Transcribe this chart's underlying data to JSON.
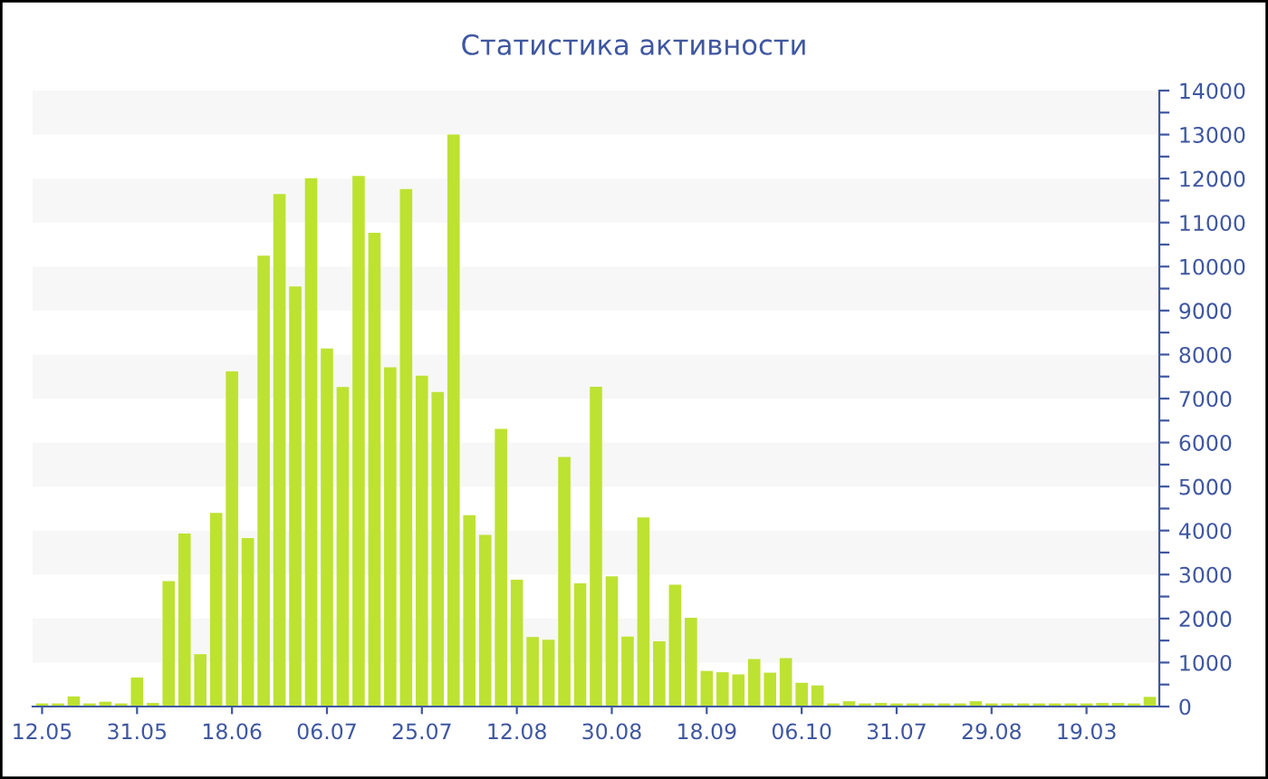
{
  "chart_data": {
    "type": "bar",
    "title": "Статистика активности",
    "categories": [
      "12.05",
      null,
      null,
      null,
      null,
      null,
      "31.05",
      null,
      null,
      null,
      null,
      null,
      "18.06",
      null,
      null,
      null,
      null,
      null,
      "06.07",
      null,
      null,
      null,
      null,
      null,
      "25.07",
      null,
      null,
      null,
      null,
      null,
      "12.08",
      null,
      null,
      null,
      null,
      null,
      "30.08",
      null,
      null,
      null,
      null,
      null,
      "18.09",
      null,
      null,
      null,
      null,
      null,
      "06.10",
      null,
      null,
      null,
      null,
      null,
      "31.07",
      null,
      null,
      null,
      null,
      null,
      "29.08",
      null,
      null,
      null,
      null,
      null,
      "19.03",
      null,
      null,
      null,
      null
    ],
    "values": [
      70,
      70,
      230,
      70,
      110,
      70,
      660,
      80,
      2850,
      3930,
      1190,
      4400,
      7620,
      3830,
      10250,
      11650,
      9550,
      12010,
      8140,
      7260,
      12060,
      10770,
      7710,
      11760,
      7520,
      7150,
      13000,
      4350,
      3900,
      6310,
      2880,
      1580,
      1520,
      5670,
      2800,
      7270,
      2960,
      1590,
      4300,
      1480,
      2770,
      2020,
      810,
      780,
      730,
      1080,
      770,
      1100,
      540,
      480,
      70,
      120,
      70,
      80,
      70,
      70,
      70,
      70,
      70,
      120,
      70,
      70,
      70,
      70,
      70,
      70,
      70,
      80,
      80,
      70,
      220
    ],
    "color": "#bde232",
    "ylim": [
      0,
      14000
    ],
    "yticks": [
      0,
      {
        "value": 500,
        "label": null
      },
      1000,
      {
        "value": 1500,
        "label": null
      },
      2000,
      {
        "value": 2500,
        "label": null
      },
      3000,
      {
        "value": 3500,
        "label": null
      },
      4000,
      {
        "value": 4500,
        "label": null
      },
      5000,
      {
        "value": 5500,
        "label": null
      },
      6000,
      {
        "value": 6500,
        "label": null
      },
      7000,
      {
        "value": 7500,
        "label": null
      },
      8000,
      {
        "value": 8500,
        "label": null
      },
      9000,
      {
        "value": 9500,
        "label": null
      },
      10000,
      {
        "value": 10500,
        "label": null
      },
      11000,
      {
        "value": 11500,
        "label": null
      },
      12000,
      {
        "value": 12500,
        "label": null
      },
      13000,
      {
        "value": 13500,
        "label": null
      },
      14000
    ],
    "bands": [
      {
        "axis": "y",
        "from": 1000,
        "to": 2000,
        "color": "#f7f7f7"
      },
      {
        "axis": "y",
        "from": 3000,
        "to": 4000,
        "color": "#f7f7f7"
      },
      {
        "axis": "y",
        "from": 5000,
        "to": 6000,
        "color": "#f7f7f7"
      },
      {
        "axis": "y",
        "from": 7000,
        "to": 8000,
        "color": "#f7f7f7"
      },
      {
        "axis": "y",
        "from": 9000,
        "to": 10000,
        "color": "#f7f7f7"
      },
      {
        "axis": "y",
        "from": 11000,
        "to": 12000,
        "color": "#f7f7f7"
      },
      {
        "axis": "y",
        "from": 13000,
        "to": 14000,
        "color": "#f7f7f7"
      }
    ]
  }
}
